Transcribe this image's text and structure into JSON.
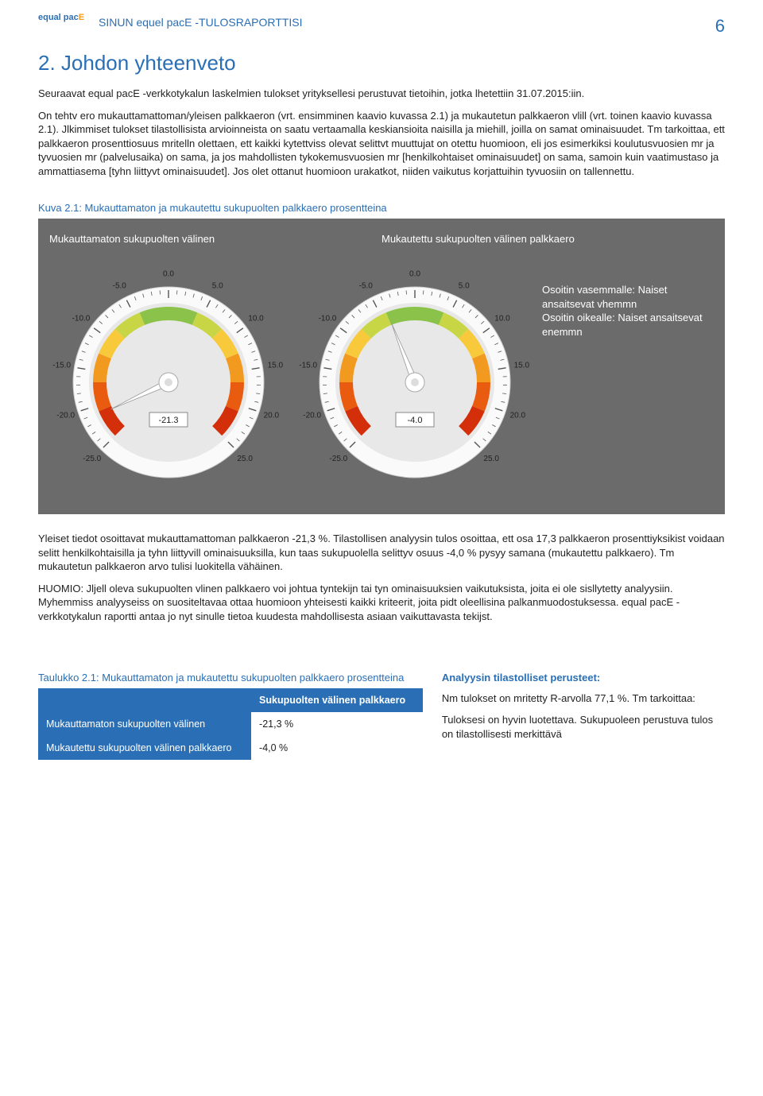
{
  "header": {
    "logo_line1": "equal pac",
    "logo_e": "E",
    "title": "SINUN equel pacE -TULOSRAPORTTISI",
    "page_number": "6"
  },
  "section": {
    "title": "2. Johdon yhteenveto",
    "intro": "Seuraavat equal pacE -verkkotykalun laskelmien tulokset yrityksellesi perustuvat tietoihin, jotka lhetettiin 31.07.2015:iin.",
    "body": "On tehtv ero mukauttamattoman/yleisen palkkaeron (vrt. ensimminen kaavio kuvassa 2.1) ja mukautetun palkkaeron vlill (vrt. toinen kaavio kuvassa 2.1). Jlkimmiset tulokset tilastollisista arvioinneista on saatu vertaamalla keskiansioita naisilla ja miehill, joilla on samat ominaisuudet. Tm tarkoittaa, ett palkkaeron prosenttiosuus mritelln olettaen, ett kaikki kytettviss olevat selittvt muuttujat on otettu huomioon, eli jos esimerkiksi koulutusvuosien mr ja tyvuosien mr (palvelusaika) on sama, ja jos mahdollisten tykokemusvuosien mr [henkilkohtaiset ominaisuudet] on sama, samoin kuin vaatimustaso ja ammattiasema [tyhn liittyvt ominaisuudet]. Jos olet ottanut huomioon urakatkot, niiden vaikutus korjattuihin tyvuosiin on tallennettu."
  },
  "figure": {
    "caption": "Kuva 2.1: Mukauttamaton ja mukautettu sukupuolten palkkaero prosentteina",
    "left_title": "Mukauttamaton sukupuolten välinen",
    "right_title": "Mukautettu sukupuolten välinen palkkaero",
    "legend_l1": "Osoitin vasemmalle: Naiset ansaitsevat vhemmn",
    "legend_l2": "Osoitin oikealle: Naiset ansaitsevat enemmn"
  },
  "gauges": {
    "type": "gauge",
    "min": -25,
    "max": 25,
    "tick_labels": [
      "-25.0",
      "-20.0",
      "-15.0",
      "-10.0",
      "-5.0",
      "0.0",
      "5.0",
      "10.0",
      "15.0",
      "20.0",
      "25.0"
    ],
    "arc_colors": [
      "#d32f0a",
      "#e95b0f",
      "#f29a1f",
      "#f8c93a",
      "#c8d645",
      "#8bc34a",
      "#8bc34a",
      "#c8d645",
      "#f8c93a",
      "#f29a1f",
      "#e95b0f",
      "#d32f0a"
    ],
    "face_bg": "#e8e8e8",
    "tick_color": "#555",
    "needle_color": "#ffffff",
    "needle_outline": "#999",
    "value_box_bg": "#ffffff",
    "value_box_border": "#888",
    "left": {
      "value": -21.3,
      "display": "-21.3"
    },
    "right": {
      "value": -4.0,
      "display": "-4.0"
    }
  },
  "analysis": {
    "p1": "Yleiset tiedot osoittavat mukauttamattoman palkkaeron -21,3 %. Tilastollisen analyysin tulos osoittaa, ett osa 17,3 palkkaeron prosenttiyksikist voidaan selitt henkilkohtaisilla ja tyhn liittyvill ominaisuuksilla, kun taas sukupuolella selittyv osuus -4,0 % pysyy samana (mukautettu palkkaero). Tm mukautetun palkkaeron arvo tulisi luokitella vähäinen.",
    "p2": "HUOMIO: Jljell oleva sukupuolten vlinen palkkaero voi johtua tyntekijn tai tyn ominaisuuksien vaikutuksista, joita ei ole sisllytetty analyysiin. Myhemmiss analyyseiss on suositeltavaa ottaa huomioon yhteisesti kaikki kriteerit, joita pidt oleellisina palkanmuodostuksessa. equal pacE -verkkotykalun raportti antaa jo nyt sinulle tietoa kuudesta mahdollisesta asiaan vaikuttavasta tekijst."
  },
  "table": {
    "caption": "Taulukko 2.1: Mukauttamaton ja mukautettu sukupuolten palkkaero prosentteina",
    "col_header": "Sukupuolten välinen palkkaero",
    "rows": [
      {
        "label": "Mukauttamaton sukupuolten välinen",
        "value": "-21,3 %"
      },
      {
        "label": "Mukautettu sukupuolten välinen palkkaero",
        "value": "-4,0 %"
      }
    ]
  },
  "stats": {
    "title": "Analyysin tilastolliset perusteet:",
    "p1": "Nm tulokset on mritetty R-arvolla 77,1 %. Tm tarkoittaa:",
    "p2": "Tuloksesi on hyvin luotettava. Sukupuoleen perustuva tulos on tilastollisesti merkittävä"
  }
}
